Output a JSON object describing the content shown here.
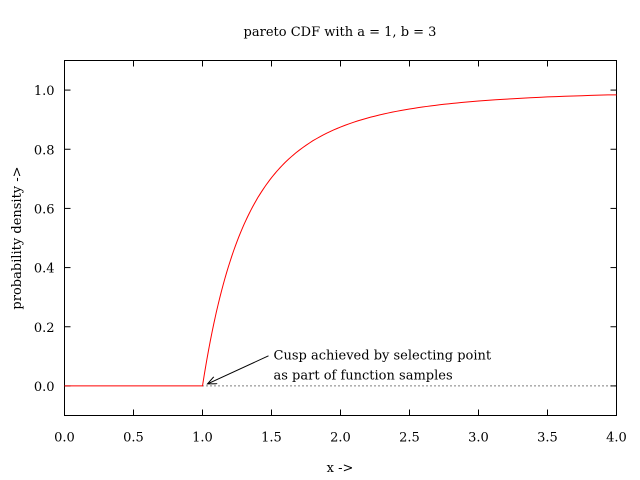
{
  "chart_data": {
    "type": "line",
    "title": "pareto CDF with a = 1, b = 3",
    "xlabel": "x ->",
    "ylabel": "probability density ->",
    "xlim": [
      0,
      4
    ],
    "ylim": [
      -0.1,
      1.1
    ],
    "grid": false,
    "legend": "none",
    "x_ticks": [
      0.0,
      0.5,
      1.0,
      1.5,
      2.0,
      2.5,
      3.0,
      3.5,
      4.0
    ],
    "x_tick_labels": [
      "0.0",
      "0.5",
      "1.0",
      "1.5",
      "2.0",
      "2.5",
      "3.0",
      "3.5",
      "4.0"
    ],
    "y_ticks": [
      0.0,
      0.2,
      0.4,
      0.6,
      0.8,
      1.0
    ],
    "y_tick_labels": [
      "0.0",
      "0.2",
      "0.4",
      "0.6",
      "0.8",
      "1.0"
    ],
    "series": [
      {
        "color": "#ff0000",
        "x": [
          0.0,
          0.5,
          1.0,
          1.05,
          1.1,
          1.2,
          1.3,
          1.4,
          1.5,
          1.6,
          1.8,
          2.0,
          2.25,
          2.5,
          2.75,
          3.0,
          3.5,
          4.0
        ],
        "y": [
          0.0,
          0.0,
          0.0,
          0.136,
          0.249,
          0.421,
          0.545,
          0.636,
          0.704,
          0.756,
          0.829,
          0.875,
          0.912,
          0.936,
          0.952,
          0.963,
          0.977,
          0.984
        ]
      }
    ],
    "zero_line": {
      "y": 0.0,
      "style": "dotted"
    },
    "annotation": {
      "lines": [
        "Cusp achieved by selecting point",
        "as part of function samples"
      ],
      "target": [
        1.0,
        0.0
      ],
      "text_anchor": [
        1.5,
        0.1
      ]
    }
  }
}
